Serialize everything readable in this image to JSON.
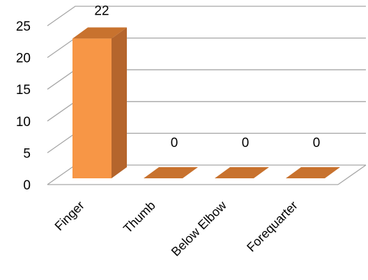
{
  "chart_data": {
    "type": "bar",
    "style": "3d-column",
    "categories": [
      "Finger",
      "Thumb",
      "Below Elbow",
      "Forequarter"
    ],
    "values": [
      22,
      0,
      0,
      0
    ],
    "data_labels": [
      "22",
      "0",
      "0",
      "0"
    ],
    "ylim": [
      0,
      25
    ],
    "yticks": [
      0,
      5,
      10,
      15,
      20,
      25
    ],
    "ytick_labels": [
      "0",
      "5",
      "10",
      "15",
      "20",
      "25"
    ],
    "grid": true,
    "legend": "none",
    "colors": {
      "bar_front": "#F79646",
      "bar_side": "#B5652C",
      "bar_top": "#C8722E",
      "gridline": "#A6A6A6"
    }
  }
}
